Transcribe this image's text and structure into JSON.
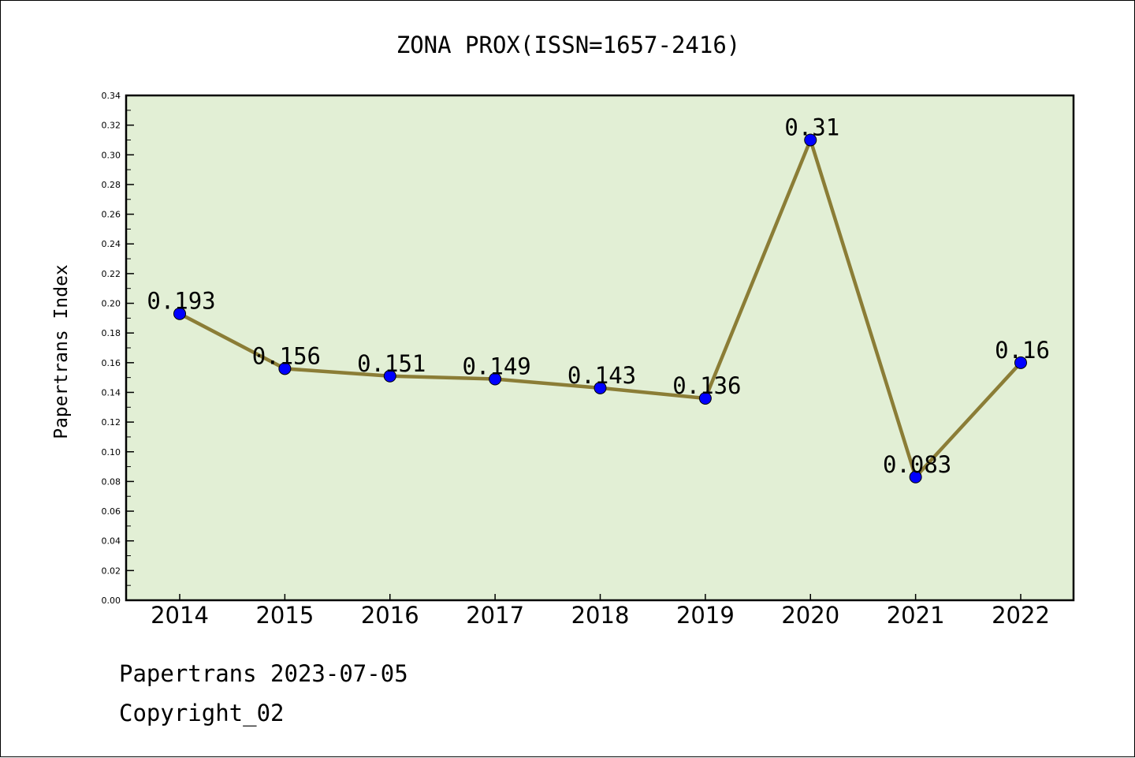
{
  "chart_data": {
    "type": "line",
    "title": "ZONA PROX(ISSN=1657-2416)",
    "xlabel": "",
    "ylabel": "Papertrans Index",
    "categories": [
      "2014",
      "2015",
      "2016",
      "2017",
      "2018",
      "2019",
      "2020",
      "2021",
      "2022"
    ],
    "series": [
      {
        "values": [
          0.193,
          0.156,
          0.151,
          0.149,
          0.143,
          0.136,
          0.31,
          0.083,
          0.16
        ],
        "labels": [
          "0.193",
          "0.156",
          "0.151",
          "0.149",
          "0.143",
          "0.136",
          "0.31",
          "0.083",
          "0.16"
        ]
      }
    ],
    "ylim": [
      0,
      0.34
    ],
    "yticks": [
      "0.00",
      "0.02",
      "0.04",
      "0.06",
      "0.08",
      "0.10",
      "0.12",
      "0.14",
      "0.16",
      "0.18",
      "0.20",
      "0.22",
      "0.24",
      "0.26",
      "0.28",
      "0.30",
      "0.32",
      "0.34"
    ],
    "grid": false,
    "colors": {
      "plot_background": "#e2efd5",
      "line": "#8b7d36",
      "marker": "#0000ff"
    }
  },
  "footer": {
    "line1": "Papertrans 2023-07-05",
    "line2": "Copyright_02"
  }
}
